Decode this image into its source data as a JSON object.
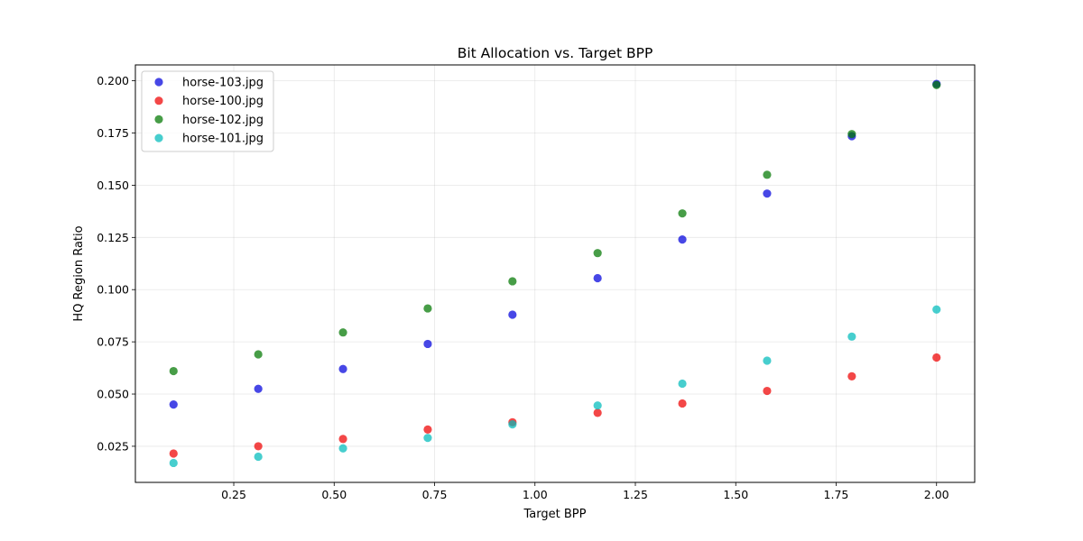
{
  "chart_data": {
    "type": "scatter",
    "title": "Bit Allocation vs. Target BPP",
    "xlabel": "Target BPP",
    "ylabel": "HQ Region Ratio",
    "xlim": [
      0.005,
      2.095
    ],
    "ylim": [
      0.0077,
      0.2076
    ],
    "xticks": [
      0.25,
      0.5,
      0.75,
      1.0,
      1.25,
      1.5,
      1.75,
      2.0
    ],
    "xtick_labels": [
      "0.25",
      "0.50",
      "0.75",
      "1.00",
      "1.25",
      "1.50",
      "1.75",
      "2.00"
    ],
    "yticks": [
      0.025,
      0.05,
      0.075,
      0.1,
      0.125,
      0.15,
      0.175,
      0.2
    ],
    "ytick_labels": [
      "0.025",
      "0.050",
      "0.075",
      "0.100",
      "0.125",
      "0.150",
      "0.175",
      "0.200"
    ],
    "grid": true,
    "legend_position": "top-left",
    "x": [
      0.1,
      0.311,
      0.522,
      0.733,
      0.944,
      1.156,
      1.367,
      1.578,
      1.789,
      2.0
    ],
    "series": [
      {
        "name": "horse-103.jpg",
        "color": "#0000dd",
        "values": [
          0.045,
          0.0525,
          0.062,
          0.074,
          0.088,
          0.1055,
          0.124,
          0.146,
          0.1735,
          0.1985
        ]
      },
      {
        "name": "horse-100.jpg",
        "color": "#ee0000",
        "values": [
          0.0215,
          0.025,
          0.0285,
          0.033,
          0.0365,
          0.041,
          0.0455,
          0.0515,
          0.0585,
          0.0675
        ]
      },
      {
        "name": "horse-102.jpg",
        "color": "#007700",
        "values": [
          0.061,
          0.069,
          0.0795,
          0.091,
          0.104,
          0.1175,
          0.1365,
          0.155,
          0.1745,
          0.198
        ]
      },
      {
        "name": "horse-101.jpg",
        "color": "#00bbbb",
        "values": [
          0.017,
          0.02,
          0.024,
          0.029,
          0.0355,
          0.0445,
          0.055,
          0.066,
          0.0775,
          0.0905
        ]
      }
    ]
  }
}
